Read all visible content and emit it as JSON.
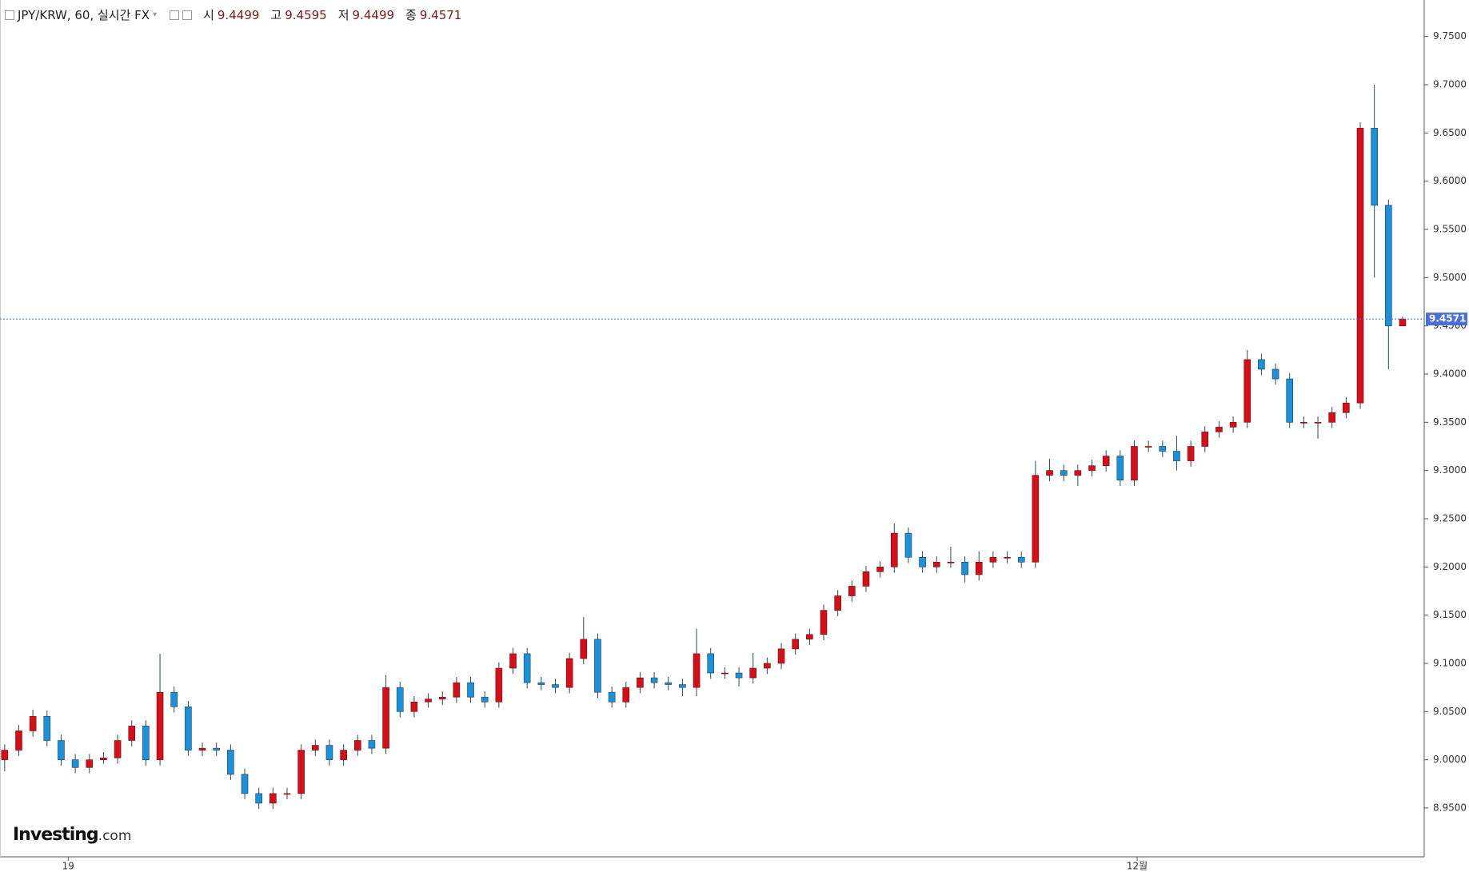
{
  "chart_data": {
    "type": "candlestick",
    "title": "JPY/KRW, 60, 실시간 FX",
    "ohlc_labels": [
      "시",
      "고",
      "저",
      "종"
    ],
    "up_color": "#d0111b",
    "down_color": "#1e90d8",
    "x": [
      0,
      1,
      2,
      3,
      4,
      5,
      6,
      7,
      8,
      9,
      10,
      11,
      12,
      13,
      14,
      15,
      16,
      17,
      18,
      19,
      20,
      21,
      22,
      23,
      24,
      25,
      26,
      27,
      28,
      29,
      30,
      31,
      32,
      33,
      34,
      35,
      36,
      37,
      38,
      39,
      40,
      41,
      42,
      43,
      44,
      45,
      46,
      47,
      48,
      49,
      50,
      51,
      52,
      53,
      54,
      55,
      56,
      57,
      58,
      59,
      60,
      61,
      62,
      63,
      64,
      65,
      66,
      67,
      68,
      69,
      70,
      71,
      72,
      73,
      74,
      75,
      76,
      77,
      78,
      79,
      80,
      81,
      82,
      83,
      84,
      85,
      86,
      87,
      88,
      89,
      90,
      91,
      92,
      93,
      94,
      95,
      96,
      97,
      98,
      99
    ],
    "open": [
      9.0,
      9.01,
      9.03,
      9.045,
      9.02,
      9.0,
      8.992,
      9.0,
      9.002,
      9.02,
      9.035,
      9.0,
      9.07,
      9.055,
      9.01,
      9.012,
      9.01,
      8.985,
      8.965,
      8.955,
      8.965,
      8.965,
      9.01,
      9.015,
      9.0,
      9.01,
      9.02,
      9.012,
      9.075,
      9.05,
      9.06,
      9.063,
      9.065,
      9.08,
      9.065,
      9.06,
      9.095,
      9.11,
      9.08,
      9.078,
      9.075,
      9.105,
      9.125,
      9.07,
      9.06,
      9.075,
      9.085,
      9.08,
      9.078,
      9.075,
      9.11,
      9.09,
      9.09,
      9.085,
      9.095,
      9.1,
      9.115,
      9.125,
      9.13,
      9.155,
      9.17,
      9.18,
      9.195,
      9.2,
      9.235,
      9.21,
      9.2,
      9.205,
      9.205,
      9.192,
      9.205,
      9.21,
      9.21,
      9.205,
      9.295,
      9.3,
      9.295,
      9.3,
      9.305,
      9.315,
      9.29,
      9.325,
      9.325,
      9.32,
      9.31,
      9.325,
      9.34,
      9.345,
      9.35,
      9.415,
      9.405,
      9.395,
      9.35,
      9.35,
      9.35,
      9.36,
      9.37,
      9.655,
      9.575,
      9.4499
    ],
    "high": [
      9.016,
      9.036,
      9.052,
      9.051,
      9.026,
      9.006,
      9.006,
      9.008,
      9.026,
      9.041,
      9.041,
      9.11,
      9.076,
      9.061,
      9.018,
      9.018,
      9.016,
      8.991,
      8.971,
      8.971,
      8.971,
      9.016,
      9.021,
      9.021,
      9.016,
      9.026,
      9.026,
      9.088,
      9.081,
      9.066,
      9.069,
      9.071,
      9.086,
      9.086,
      9.071,
      9.101,
      9.116,
      9.116,
      9.086,
      9.084,
      9.111,
      9.148,
      9.131,
      9.076,
      9.081,
      9.091,
      9.091,
      9.086,
      9.084,
      9.136,
      9.116,
      9.096,
      9.096,
      9.111,
      9.106,
      9.121,
      9.131,
      9.136,
      9.161,
      9.176,
      9.186,
      9.201,
      9.206,
      9.245,
      9.241,
      9.216,
      9.211,
      9.221,
      9.211,
      9.216,
      9.216,
      9.216,
      9.216,
      9.31,
      9.312,
      9.306,
      9.306,
      9.311,
      9.321,
      9.321,
      9.331,
      9.331,
      9.331,
      9.336,
      9.331,
      9.346,
      9.351,
      9.356,
      9.425,
      9.421,
      9.411,
      9.401,
      9.356,
      9.356,
      9.366,
      9.376,
      9.661,
      9.7,
      9.581,
      9.4595
    ],
    "low": [
      8.988,
      9.004,
      9.024,
      9.014,
      8.994,
      8.986,
      8.986,
      8.996,
      8.996,
      9.014,
      8.994,
      8.994,
      9.049,
      9.004,
      9.004,
      9.004,
      8.979,
      8.959,
      8.949,
      8.949,
      8.959,
      8.959,
      9.004,
      8.994,
      8.994,
      9.004,
      9.006,
      9.006,
      9.044,
      9.044,
      9.054,
      9.057,
      9.059,
      9.059,
      9.054,
      9.054,
      9.089,
      9.074,
      9.072,
      9.069,
      9.069,
      9.099,
      9.064,
      9.054,
      9.054,
      9.069,
      9.074,
      9.072,
      9.066,
      9.066,
      9.084,
      9.084,
      9.076,
      9.079,
      9.089,
      9.094,
      9.109,
      9.119,
      9.124,
      9.149,
      9.164,
      9.174,
      9.189,
      9.194,
      9.204,
      9.194,
      9.194,
      9.199,
      9.184,
      9.186,
      9.199,
      9.204,
      9.199,
      9.199,
      9.289,
      9.289,
      9.284,
      9.294,
      9.299,
      9.284,
      9.284,
      9.319,
      9.314,
      9.3,
      9.304,
      9.319,
      9.334,
      9.339,
      9.344,
      9.399,
      9.389,
      9.344,
      9.344,
      9.333,
      9.344,
      9.354,
      9.364,
      9.5,
      9.405,
      9.4499
    ],
    "close": [
      9.01,
      9.03,
      9.045,
      9.02,
      9.0,
      8.992,
      9.0,
      9.002,
      9.02,
      9.035,
      9.0,
      9.07,
      9.055,
      9.01,
      9.012,
      9.01,
      8.985,
      8.965,
      8.955,
      8.965,
      8.965,
      9.01,
      9.015,
      9.0,
      9.01,
      9.02,
      9.012,
      9.075,
      9.05,
      9.06,
      9.063,
      9.065,
      9.08,
      9.065,
      9.06,
      9.095,
      9.11,
      9.08,
      9.078,
      9.075,
      9.105,
      9.125,
      9.07,
      9.06,
      9.075,
      9.085,
      9.08,
      9.078,
      9.075,
      9.11,
      9.09,
      9.09,
      9.085,
      9.095,
      9.1,
      9.115,
      9.125,
      9.13,
      9.155,
      9.17,
      9.18,
      9.195,
      9.2,
      9.235,
      9.21,
      9.2,
      9.205,
      9.205,
      9.192,
      9.205,
      9.21,
      9.21,
      9.205,
      9.295,
      9.3,
      9.295,
      9.3,
      9.305,
      9.315,
      9.29,
      9.325,
      9.325,
      9.32,
      9.31,
      9.325,
      9.34,
      9.345,
      9.35,
      9.415,
      9.405,
      9.395,
      9.35,
      9.35,
      9.35,
      9.36,
      9.37,
      9.655,
      9.575,
      9.4499,
      9.4571
    ],
    "xlim": [
      -0.33,
      100.53
    ],
    "xticks": [
      {
        "value": 4.5,
        "label": "19"
      },
      {
        "value": 80.2,
        "label": "12월"
      }
    ],
    "ylim": [
      8.8994,
      9.7879
    ],
    "yticks": [
      {
        "value": 8.95,
        "label": "8.9500"
      },
      {
        "value": 9.0,
        "label": "9.0000"
      },
      {
        "value": 9.05,
        "label": "9.0500"
      },
      {
        "value": 9.1,
        "label": "9.1000"
      },
      {
        "value": 9.15,
        "label": "9.1500"
      },
      {
        "value": 9.2,
        "label": "9.2000"
      },
      {
        "value": 9.25,
        "label": "9.2500"
      },
      {
        "value": 9.3,
        "label": "9.3000"
      },
      {
        "value": 9.35,
        "label": "9.3500"
      },
      {
        "value": 9.4,
        "label": "9.4000"
      },
      {
        "value": 9.45,
        "label": "9.4500"
      },
      {
        "value": 9.5,
        "label": "9.5000"
      },
      {
        "value": 9.55,
        "label": "9.5500"
      },
      {
        "value": 9.6,
        "label": "9.6000"
      },
      {
        "value": 9.65,
        "label": "9.6500"
      },
      {
        "value": 9.7,
        "label": "9.7000"
      },
      {
        "value": 9.75,
        "label": "9.7500"
      }
    ],
    "price_line_color": "#4a6fd8",
    "logo": {
      "brand": "Investing",
      "suffix": ".com"
    }
  }
}
